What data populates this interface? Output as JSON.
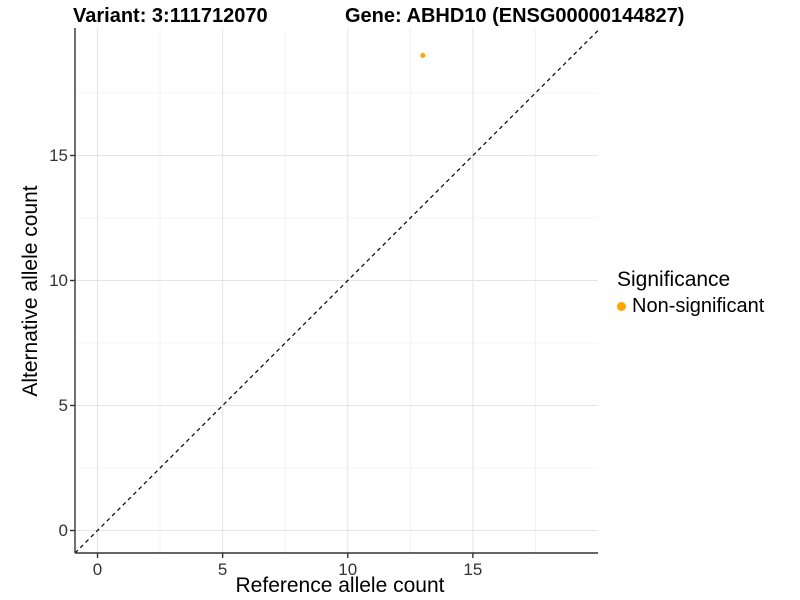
{
  "titles": {
    "variant": "Variant: 3:111712070",
    "gene": "Gene: ABHD10 (ENSG00000144827)"
  },
  "chart_data": {
    "type": "scatter",
    "xlabel": "Reference allele count",
    "ylabel": "Alternative allele count",
    "xlim": [
      -0.9,
      20.0
    ],
    "ylim": [
      -0.9,
      20.1
    ],
    "xticks": [
      0,
      5,
      10,
      15
    ],
    "yticks": [
      0,
      5,
      10,
      15
    ],
    "x_minor_gridlines": [
      2.5,
      7.5,
      12.5,
      17.5
    ],
    "y_minor_gridlines": [
      2.5,
      7.5,
      12.5,
      17.5
    ],
    "grid": true,
    "points": [
      {
        "x": 13,
        "y": 19,
        "significance": "Non-significant"
      }
    ],
    "identity_line": {
      "style": "dashed",
      "from": -0.9,
      "to": 20.0
    },
    "legend": {
      "position": "right",
      "title": "Significance",
      "items": [
        {
          "label": "Non-significant",
          "color": "#FFA500"
        }
      ]
    },
    "colors": {
      "point": "#FFA500",
      "grid_major": "#e4e4e4",
      "grid_minor": "#f0f0f0",
      "axis": "#333333",
      "dashed_line": "#000000",
      "tick_text": "#333333"
    }
  }
}
